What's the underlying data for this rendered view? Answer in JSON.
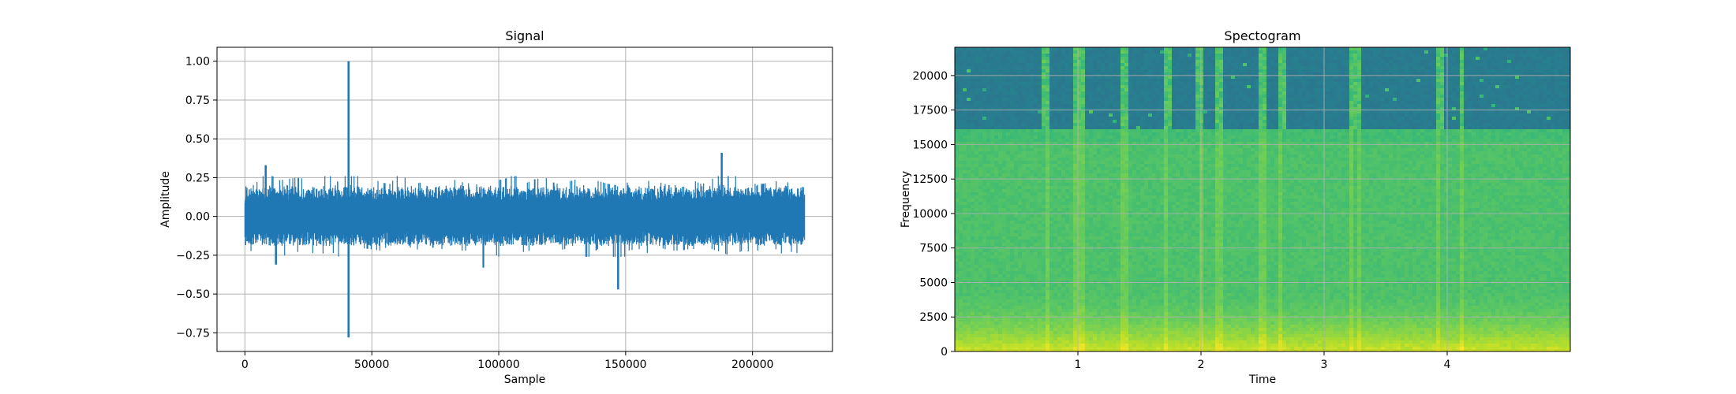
{
  "chart_data": [
    {
      "type": "line",
      "title": "Signal",
      "xlabel": "Sample",
      "ylabel": "Amplitude",
      "xlim": [
        -11000,
        231500
      ],
      "ylim": [
        -0.87,
        1.09
      ],
      "xticks": [
        0,
        50000,
        100000,
        150000,
        200000
      ],
      "xtick_labels": [
        "0",
        "50000",
        "100000",
        "150000",
        "200000"
      ],
      "yticks": [
        -0.75,
        -0.5,
        -0.25,
        0.0,
        0.25,
        0.5,
        0.75,
        1.0
      ],
      "ytick_labels": [
        "−0.75",
        "−0.50",
        "−0.25",
        "0.00",
        "0.25",
        "0.50",
        "0.75",
        "1.00"
      ],
      "grid": true,
      "color": "#1f77b4",
      "series": [
        {
          "x_start": 0,
          "x_end": 220500,
          "envelope_max": [
            0.21,
            0.2,
            0.33,
            0.23,
            0.24,
            0.25,
            0.24,
            0.23,
            0.3,
            0.22,
            1.0,
            0.24,
            0.27,
            0.22,
            0.21,
            0.29,
            0.2,
            0.22,
            0.2,
            0.2,
            0.24,
            0.22,
            0.21,
            0.2,
            0.23,
            0.24,
            0.27,
            0.21,
            0.24,
            0.25,
            0.21,
            0.22,
            0.24,
            0.26,
            0.23,
            0.21,
            0.2,
            0.22,
            0.21,
            0.23,
            0.22,
            0.2,
            0.21,
            0.24,
            0.21,
            0.22,
            0.41,
            0.3,
            0.24,
            0.21,
            0.21,
            0.23,
            0.22,
            0.22,
            0.27
          ],
          "envelope_min": [
            -0.2,
            -0.24,
            -0.22,
            -0.31,
            -0.24,
            -0.23,
            -0.22,
            -0.25,
            -0.23,
            -0.24,
            -0.78,
            -0.2,
            -0.21,
            -0.22,
            -0.19,
            -0.21,
            -0.2,
            -0.22,
            -0.2,
            -0.21,
            -0.2,
            -0.22,
            -0.22,
            -0.33,
            -0.24,
            -0.28,
            -0.22,
            -0.23,
            -0.21,
            -0.2,
            -0.22,
            -0.21,
            -0.22,
            -0.29,
            -0.21,
            -0.24,
            -0.47,
            -0.22,
            -0.21,
            -0.24,
            -0.2,
            -0.22,
            -0.22,
            -0.21,
            -0.21,
            -0.21,
            -0.23,
            -0.26,
            -0.22,
            -0.23,
            -0.21,
            -0.2,
            -0.25,
            -0.22,
            -0.28
          ]
        }
      ]
    },
    {
      "type": "heatmap",
      "title": "Spectogram",
      "xlabel": "Time",
      "ylabel": "Frequency",
      "xlim": [
        0,
        5.0
      ],
      "ylim": [
        0,
        22050
      ],
      "xticks": [
        1,
        2,
        3,
        4
      ],
      "xtick_labels": [
        "1",
        "2",
        "3",
        "4"
      ],
      "yticks": [
        0,
        2500,
        5000,
        7500,
        10000,
        12500,
        15000,
        17500,
        20000
      ],
      "ytick_labels": [
        "0",
        "2500",
        "5000",
        "7500",
        "10000",
        "12500",
        "15000",
        "17500",
        "20000"
      ],
      "grid": true,
      "colormap": [
        "#440154",
        "#31688e",
        "#26828e",
        "#35b779",
        "#6ece58",
        "#b5de2b",
        "#fde725"
      ],
      "cutoff_frequency": 16000,
      "transient_times": [
        0.75,
        0.98,
        1.02,
        1.38,
        1.72,
        2.0,
        2.15,
        2.5,
        2.65,
        3.22,
        3.28,
        3.93,
        4.12
      ]
    }
  ]
}
